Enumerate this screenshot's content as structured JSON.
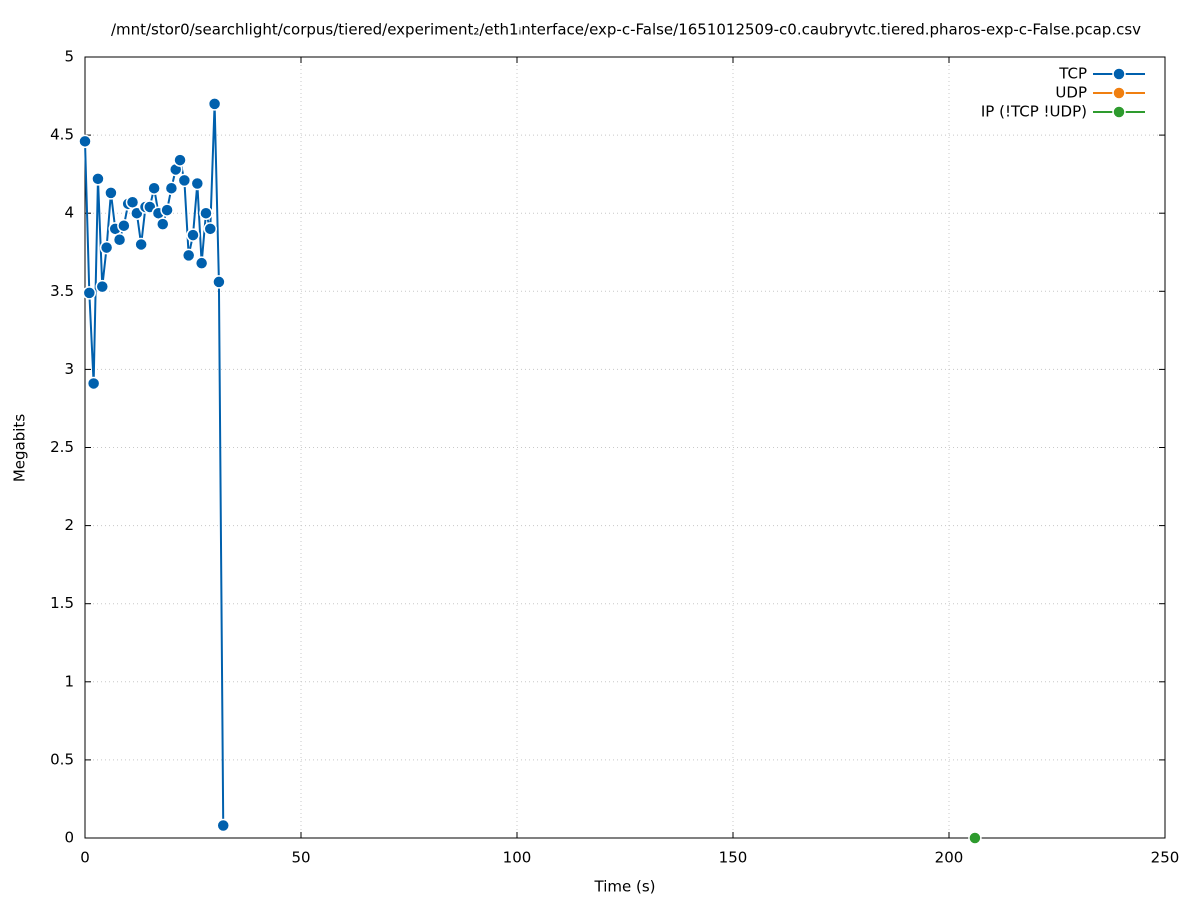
{
  "chart_data": {
    "type": "line",
    "title": "/mnt/stor0/searchlight/corpus/tiered/experiment₂/eth1ᵢnterface/exp-c-False/1651012509-c0.caubryvtc.tiered.pharos-exp-c-False.pcap.csv",
    "xlabel": "Time (s)",
    "ylabel": "Megabits",
    "xlim": [
      0,
      250
    ],
    "xticks": [
      0,
      50,
      100,
      150,
      200,
      250
    ],
    "ylim": [
      0,
      5
    ],
    "yticks": [
      0,
      0.5,
      1,
      1.5,
      2,
      2.5,
      3,
      3.5,
      4,
      4.5,
      5
    ],
    "grid": true,
    "legend": "top-right",
    "series": [
      {
        "name": "TCP",
        "color": "#0060ad",
        "x": [
          0,
          1,
          2,
          3,
          4,
          5,
          6,
          7,
          8,
          9,
          10,
          11,
          12,
          13,
          14,
          15,
          16,
          17,
          18,
          19,
          20,
          21,
          22,
          23,
          24,
          25,
          26,
          27,
          28,
          29,
          30,
          31,
          32
        ],
        "values": [
          4.46,
          3.49,
          2.91,
          4.22,
          3.53,
          3.78,
          4.13,
          3.9,
          3.83,
          3.92,
          4.06,
          4.07,
          4.0,
          3.8,
          4.04,
          4.04,
          4.16,
          4.0,
          3.93,
          4.02,
          4.16,
          4.28,
          4.34,
          4.21,
          3.73,
          3.86,
          4.19,
          3.68,
          4.0,
          3.9,
          4.7,
          3.56,
          0.08
        ]
      },
      {
        "name": "UDP",
        "color": "#f07f10",
        "x": [],
        "values": []
      },
      {
        "name": "IP (!TCP  !UDP)",
        "color": "#2e9b2e",
        "x": [
          206
        ],
        "values": [
          0
        ]
      }
    ]
  }
}
